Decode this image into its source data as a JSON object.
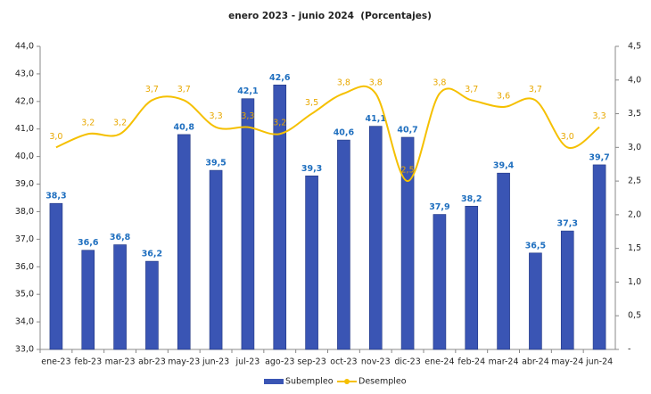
{
  "chart_data": {
    "type": "bar-line",
    "title": "enero 2023 - junio 2024  (Porcentajes)",
    "categories": [
      "ene-23",
      "feb-23",
      "mar-23",
      "abr-23",
      "may-23",
      "jun-23",
      "jul-23",
      "ago-23",
      "sep-23",
      "oct-23",
      "nov-23",
      "dic-23",
      "ene-24",
      "feb-24",
      "mar-24",
      "abr-24",
      "may-24",
      "jun-24"
    ],
    "series": [
      {
        "name": "Subempleo",
        "type": "bar",
        "color": "#3a55b4",
        "values": [
          38.3,
          36.6,
          36.8,
          36.2,
          40.8,
          39.5,
          42.1,
          42.6,
          39.3,
          40.6,
          41.1,
          40.7,
          37.9,
          38.2,
          39.4,
          36.5,
          37.3,
          39.7
        ],
        "value_labels": [
          "38,3",
          "36,6",
          "36,8",
          "36,2",
          "40,8",
          "39,5",
          "42,1",
          "42,6",
          "39,3",
          "40,6",
          "41,1",
          "40,7",
          "37,9",
          "38,2",
          "39,4",
          "36,5",
          "37,3",
          "39,7"
        ]
      },
      {
        "name": "Desempleo",
        "type": "line",
        "axis": "y2",
        "color": "#f5c000",
        "values": [
          3.0,
          3.2,
          3.2,
          3.7,
          3.7,
          3.3,
          3.3,
          3.2,
          3.5,
          3.8,
          3.8,
          2.5,
          3.8,
          3.7,
          3.6,
          3.7,
          3.0,
          3.3
        ],
        "value_labels": [
          "3,0",
          "3,2",
          "3,2",
          "3,7",
          "3,7",
          "3,3",
          "3,3",
          "3,2",
          "3,5",
          "3,8",
          "3,8",
          "2,5",
          "3,8",
          "3,7",
          "3,6",
          "3,7",
          "3,0",
          "3,3"
        ]
      }
    ],
    "ylim": [
      33,
      44
    ],
    "yticks": [
      {
        "value": 33,
        "label": "33,0"
      },
      {
        "value": 34,
        "label": "34,0"
      },
      {
        "value": 35,
        "label": "35,0"
      },
      {
        "value": 36,
        "label": "36,0"
      },
      {
        "value": 37,
        "label": "37,0"
      },
      {
        "value": 38,
        "label": "38,0"
      },
      {
        "value": 39,
        "label": "39,0"
      },
      {
        "value": 40,
        "label": "40,0"
      },
      {
        "value": 41,
        "label": "41,0"
      },
      {
        "value": 42,
        "label": "42,0"
      },
      {
        "value": 43,
        "label": "43,0"
      },
      {
        "value": 44,
        "label": "44,0"
      }
    ],
    "y2lim": [
      0,
      4.5
    ],
    "y2ticks": [
      {
        "value": 0,
        "label": "-"
      },
      {
        "value": 0.5,
        "label": "0,5"
      },
      {
        "value": 1,
        "label": "1,0"
      },
      {
        "value": 1.5,
        "label": "1,5"
      },
      {
        "value": 2,
        "label": "2,0"
      },
      {
        "value": 2.5,
        "label": "2,5"
      },
      {
        "value": 3,
        "label": "3,0"
      },
      {
        "value": 3.5,
        "label": "3,5"
      },
      {
        "value": 4,
        "label": "4,0"
      },
      {
        "value": 4.5,
        "label": "4,5"
      }
    ],
    "legend": "bottom",
    "grid": false
  }
}
